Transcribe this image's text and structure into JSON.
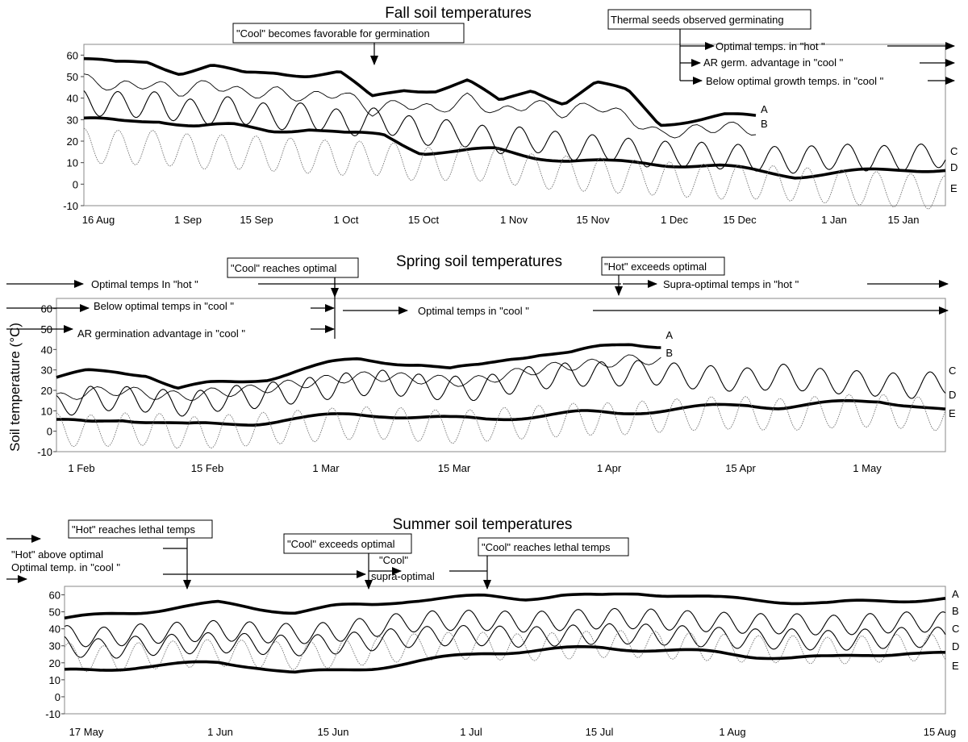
{
  "figure": {
    "y_axis_label": "Soil temperature (°C)"
  },
  "chart_data": [
    {
      "type": "line",
      "title": "Fall soil temperatures",
      "xlabel": "",
      "ylabel": "",
      "ylim": [
        -10,
        65
      ],
      "ytick_labels": [
        "60",
        "50",
        "40",
        "30",
        "20",
        "10",
        "0",
        "-10"
      ],
      "ytick_values": [
        60,
        50,
        40,
        30,
        20,
        10,
        0,
        -10
      ],
      "xtick_labels": [
        "16 Aug",
        "1 Sep",
        "15 Sep",
        "1 Oct",
        "15 Oct",
        "1 Nov",
        "15 Nov",
        "1 Dec",
        "15 Dec",
        "1 Jan",
        "15 Jan"
      ],
      "x_range": [
        "16 Aug",
        "19 Jan"
      ],
      "grid": false,
      "series": [
        {
          "name": "A",
          "style": "thick",
          "values": [
            58,
            56,
            57,
            52,
            55,
            51,
            52,
            51,
            52,
            40,
            44,
            44,
            48,
            38,
            44,
            38,
            47,
            43,
            28,
            30,
            32,
            31
          ]
        },
        {
          "name": "B",
          "style": "thin",
          "values": [
            49,
            45,
            47,
            43,
            47,
            42,
            43,
            40,
            43,
            34,
            38,
            34,
            40,
            33,
            38,
            33,
            37,
            31,
            23,
            25,
            27,
            25
          ]
        },
        {
          "name": "C",
          "style": "oscillating",
          "values": [
            38,
            37,
            37,
            33,
            35,
            31,
            32,
            28,
            30,
            24,
            24,
            20,
            21,
            17,
            17,
            14,
            14,
            13,
            12,
            11,
            13,
            12,
            12,
            14
          ]
        },
        {
          "name": "D",
          "style": "thick",
          "values": [
            30,
            29,
            30,
            27,
            27,
            25,
            26,
            23,
            23,
            15,
            15,
            16,
            13,
            11,
            10,
            10,
            9,
            8,
            6,
            4,
            5,
            6,
            7,
            7
          ]
        },
        {
          "name": "E",
          "style": "dotted-oscillating",
          "values": [
            18,
            17,
            17,
            15,
            15,
            14,
            13,
            12,
            12,
            9,
            10,
            9,
            6,
            5,
            4,
            3,
            2,
            1,
            1,
            0,
            -1,
            -2,
            -3,
            -4
          ]
        }
      ],
      "annotations": [
        {
          "text": "\"Cool\"  becomes favorable for germination",
          "boxed": true
        },
        {
          "text": "Thermal seeds observed germinating",
          "boxed": true
        },
        {
          "text": "Optimal temps. in \"hot \"",
          "boxed": false
        },
        {
          "text": "AR germ. advantage in \"cool \"",
          "boxed": false
        },
        {
          "text": "Below optimal growth temps. in \"cool \"",
          "boxed": false
        }
      ]
    },
    {
      "type": "line",
      "title": "Spring soil temperatures",
      "xlabel": "",
      "ylabel": "Soil temperature (°C)",
      "ylim": [
        -10,
        65
      ],
      "ytick_labels": [
        "60",
        "50",
        "40",
        "30",
        "20",
        "10",
        "0",
        "-10"
      ],
      "ytick_values": [
        60,
        50,
        40,
        30,
        20,
        10,
        0,
        -10
      ],
      "xtick_labels": [
        "1 Feb",
        "15 Feb",
        "1 Mar",
        "15 Mar",
        "1 Apr",
        "15 Apr",
        "1 May"
      ],
      "x_range": [
        "1 Feb",
        "10 May"
      ],
      "grid": false,
      "series": [
        {
          "name": "A",
          "style": "thick",
          "values": [
            26,
            29,
            29,
            28,
            21,
            23,
            24,
            26,
            30,
            33,
            35,
            34,
            33,
            30,
            32,
            36,
            38,
            38,
            41,
            43,
            42
          ]
        },
        {
          "name": "B",
          "style": "thin",
          "values": [
            16,
            19,
            20,
            18,
            17,
            19,
            20,
            22,
            24,
            26,
            27,
            26,
            25,
            24,
            27,
            30,
            32,
            33,
            35,
            35
          ]
        },
        {
          "name": "C",
          "style": "oscillating",
          "values": [
            12,
            16,
            16,
            15,
            13,
            16,
            17,
            19,
            21,
            23,
            24,
            22,
            21,
            21,
            25,
            27,
            28,
            28,
            29,
            27,
            26,
            25,
            27,
            25,
            24,
            23,
            22,
            24
          ]
        },
        {
          "name": "D",
          "style": "thick",
          "values": [
            5,
            4,
            6,
            5,
            3,
            3,
            4,
            6,
            7,
            8,
            8,
            7,
            6,
            6,
            7,
            8,
            9,
            9,
            10,
            11,
            12,
            13,
            12,
            13,
            14,
            15,
            13,
            10
          ]
        },
        {
          "name": "E",
          "style": "dotted-oscillating",
          "values": [
            1,
            0,
            1,
            1,
            -1,
            0,
            1,
            2,
            3,
            4,
            4,
            3,
            2,
            3,
            4,
            5,
            6,
            6,
            7,
            8,
            9,
            9,
            8,
            9,
            10,
            10,
            9,
            8
          ]
        }
      ],
      "annotations": [
        {
          "text": "\"Cool\"  reaches optimal",
          "boxed": true
        },
        {
          "text": "\"Hot\" exceeds  optimal",
          "boxed": true
        },
        {
          "text": "Optimal temps  In \"hot \"",
          "boxed": false
        },
        {
          "text": "Supra-optimal temps in \"hot \"",
          "boxed": false
        },
        {
          "text": "Below optimal temps in \"cool \"",
          "boxed": false
        },
        {
          "text": "Optimal  temps in \"cool \"",
          "boxed": false
        },
        {
          "text": "AR germination advantage in \"cool \"",
          "boxed": false
        }
      ]
    },
    {
      "type": "line",
      "title": "Summer soil temperatures",
      "xlabel": "",
      "ylabel": "",
      "ylim": [
        -10,
        65
      ],
      "ytick_labels": [
        "60",
        "50",
        "40",
        "30",
        "20",
        "10",
        "0",
        "-10"
      ],
      "ytick_values": [
        60,
        50,
        40,
        30,
        20,
        10,
        0,
        -10
      ],
      "xtick_labels": [
        "17 May",
        "1 Jun",
        "15 Jun",
        "1 Jul",
        "15 Jul",
        "1 Aug",
        "15 Aug"
      ],
      "x_range": [
        "17 May",
        "15 Aug"
      ],
      "grid": false,
      "series": [
        {
          "name": "A",
          "style": "thick",
          "values": [
            46,
            48,
            50,
            53,
            55,
            52,
            50,
            53,
            54,
            57,
            58,
            59,
            58,
            60,
            59,
            61,
            60,
            58,
            57,
            56,
            55,
            56,
            57,
            58
          ]
        },
        {
          "name": "B",
          "style": "oscillating",
          "values": [
            36,
            35,
            37,
            38,
            39,
            38,
            37,
            38,
            41,
            44,
            45,
            45,
            44,
            45,
            46,
            46,
            45,
            44,
            43,
            43,
            42,
            43,
            44,
            44
          ]
        },
        {
          "name": "C",
          "style": "oscillating",
          "values": [
            30,
            28,
            30,
            31,
            32,
            31,
            30,
            31,
            33,
            35,
            36,
            36,
            35,
            36,
            37,
            37,
            36,
            35,
            34,
            34,
            33,
            34,
            35,
            35
          ]
        },
        {
          "name": "D",
          "style": "dotted-oscillating",
          "values": [
            24,
            22,
            24,
            25,
            26,
            25,
            24,
            25,
            27,
            29,
            30,
            30,
            29,
            30,
            31,
            31,
            30,
            29,
            28,
            28,
            27,
            28,
            29,
            29
          ]
        },
        {
          "name": "E",
          "style": "thick",
          "values": [
            15,
            16,
            18,
            19,
            20,
            18,
            14,
            15,
            17,
            20,
            23,
            26,
            27,
            28,
            29,
            28,
            27,
            26,
            24,
            23,
            23,
            25,
            26,
            25
          ]
        }
      ],
      "annotations": [
        {
          "text": "\"Hot\" reaches lethal temps",
          "boxed": true
        },
        {
          "text": "\"Cool\" exceeds optimal",
          "boxed": true
        },
        {
          "text": "\"Cool\" reaches lethal temps",
          "boxed": true
        },
        {
          "text": "\"Hot\" above optimal",
          "boxed": false
        },
        {
          "text": "Optimal temp. in \"cool \"",
          "boxed": false
        },
        {
          "text": "\"Cool\"",
          "boxed": false
        },
        {
          "text": "supra-optimal",
          "boxed": false
        }
      ]
    }
  ]
}
